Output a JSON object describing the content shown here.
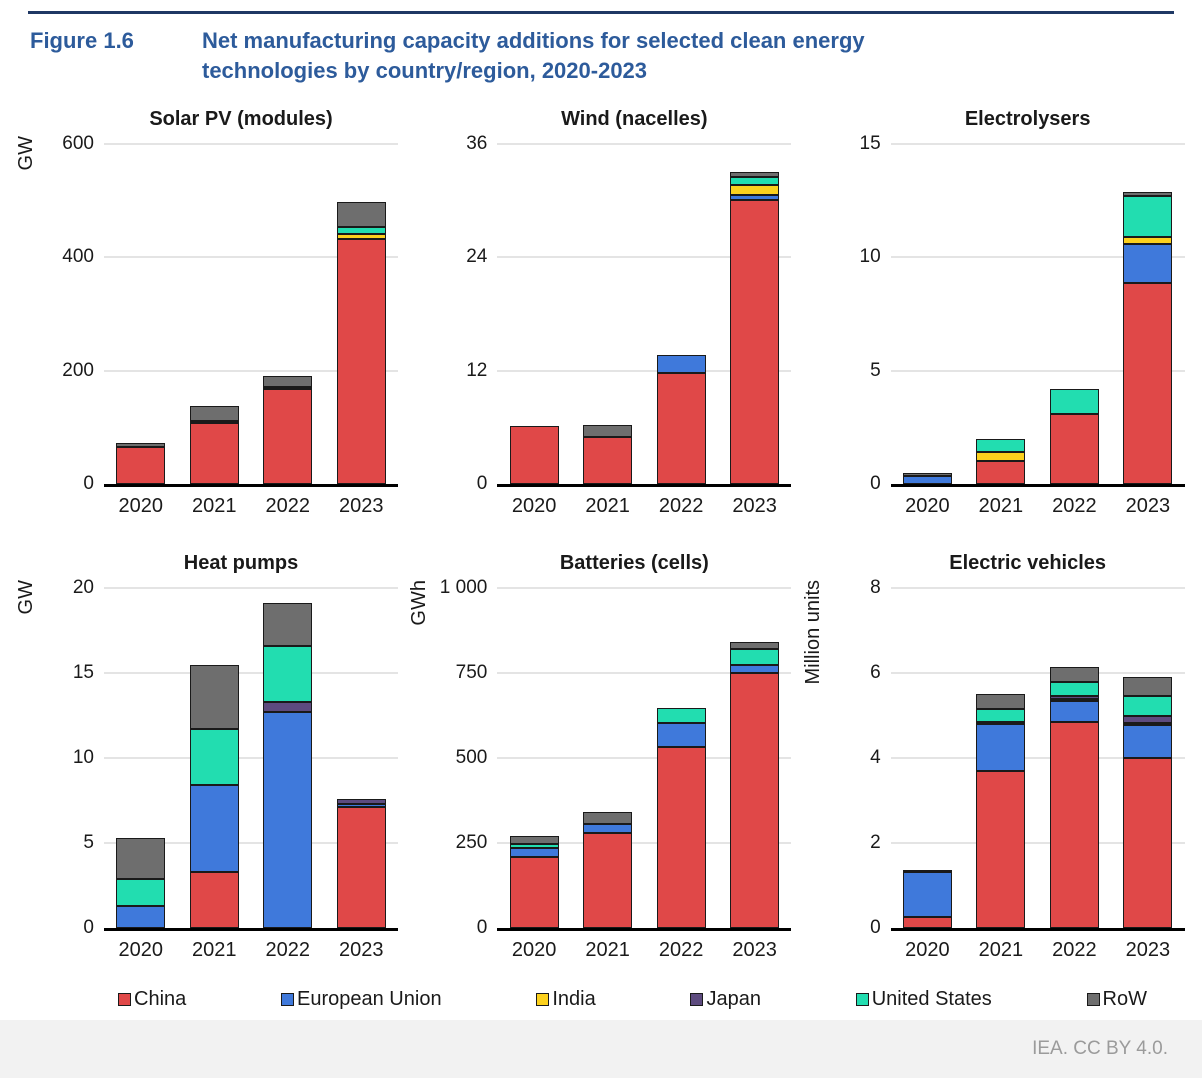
{
  "header": {
    "figure_label": "Figure 1.6",
    "title_line1": "Net manufacturing capacity additions for selected clean energy",
    "title_line2": "technologies by country/region, 2020-2023",
    "accent_color": "#2d5b9b",
    "rule_color": "#1f3864"
  },
  "footer": {
    "attribution": "IEA. CC BY 4.0."
  },
  "legend": [
    {
      "label": "China",
      "color": "#e04848"
    },
    {
      "label": "European Union",
      "color": "#3f79db"
    },
    {
      "label": "India",
      "color": "#fcd11d"
    },
    {
      "label": "Japan",
      "color": "#5d4b7f"
    },
    {
      "label": "United States",
      "color": "#22ddb0"
    },
    {
      "label": "RoW",
      "color": "#6e6e6e"
    }
  ],
  "series_colors": {
    "China": "#e04848",
    "European Union": "#3f79db",
    "India": "#fcd11d",
    "Japan": "#5d4b7f",
    "United States": "#22ddb0",
    "RoW": "#6e6e6e"
  },
  "chart_config": {
    "stacked": true,
    "legend_position": "bottom",
    "grid": "horizontal",
    "gridline_color": "#e4e4e4",
    "bar_border_color": "#1a1a1a"
  },
  "chart_data": [
    {
      "type": "bar",
      "stacked": true,
      "title": "Solar PV (modules)",
      "ylabel": "GW",
      "ylim": [
        0,
        600
      ],
      "yticks": [
        0,
        200,
        400,
        600
      ],
      "yticklabels": [
        "0",
        "200",
        "400",
        "600"
      ],
      "categories": [
        "2020",
        "2021",
        "2022",
        "2023"
      ],
      "series": [
        {
          "name": "China",
          "values": [
            65,
            107,
            167,
            432
          ]
        },
        {
          "name": "European Union",
          "values": [
            0,
            0,
            0,
            0
          ]
        },
        {
          "name": "India",
          "values": [
            0,
            4,
            4,
            10
          ]
        },
        {
          "name": "Japan",
          "values": [
            0,
            0,
            0,
            0
          ]
        },
        {
          "name": "United States",
          "values": [
            0,
            0,
            0,
            12
          ]
        },
        {
          "name": "RoW",
          "values": [
            8,
            27,
            20,
            44
          ]
        }
      ]
    },
    {
      "type": "bar",
      "stacked": true,
      "title": "Wind (nacelles)",
      "ylabel": "",
      "ylim": [
        0,
        36
      ],
      "yticks": [
        0,
        12,
        24,
        36
      ],
      "yticklabels": [
        "0",
        "12",
        "24",
        "36"
      ],
      "categories": [
        "2020",
        "2021",
        "2022",
        "2023"
      ],
      "series": [
        {
          "name": "China",
          "values": [
            6.1,
            5.0,
            11.8,
            30.1
          ]
        },
        {
          "name": "European Union",
          "values": [
            0,
            0,
            1.9,
            0.55
          ]
        },
        {
          "name": "India",
          "values": [
            0,
            0,
            0,
            1.0
          ]
        },
        {
          "name": "Japan",
          "values": [
            0,
            0,
            0,
            0
          ]
        },
        {
          "name": "United States",
          "values": [
            0,
            0,
            0,
            0.9
          ]
        },
        {
          "name": "RoW",
          "values": [
            0,
            1.3,
            0,
            0.5
          ]
        }
      ]
    },
    {
      "type": "bar",
      "stacked": true,
      "title": "Electrolysers",
      "ylabel": "",
      "ylim": [
        0,
        15
      ],
      "yticks": [
        0,
        5,
        10,
        15
      ],
      "yticklabels": [
        "0",
        "5",
        "10",
        "15"
      ],
      "categories": [
        "2020",
        "2021",
        "2022",
        "2023"
      ],
      "series": [
        {
          "name": "China",
          "values": [
            0,
            1.0,
            3.1,
            8.85
          ]
        },
        {
          "name": "European Union",
          "values": [
            0.35,
            0,
            0,
            1.75
          ]
        },
        {
          "name": "India",
          "values": [
            0,
            0.4,
            0,
            0.3
          ]
        },
        {
          "name": "Japan",
          "values": [
            0,
            0,
            0,
            0
          ]
        },
        {
          "name": "United States",
          "values": [
            0,
            0.6,
            1.1,
            1.8
          ]
        },
        {
          "name": "RoW",
          "values": [
            0.15,
            0,
            0,
            0.2
          ]
        }
      ]
    },
    {
      "type": "bar",
      "stacked": true,
      "title": "Heat pumps",
      "ylabel": "GW",
      "ylim": [
        0,
        20
      ],
      "yticks": [
        0,
        5,
        10,
        15,
        20
      ],
      "yticklabels": [
        "0",
        "5",
        "10",
        "15",
        "20"
      ],
      "categories": [
        "2020",
        "2021",
        "2022",
        "2023"
      ],
      "series": [
        {
          "name": "China",
          "values": [
            0,
            3.3,
            0,
            7.1
          ]
        },
        {
          "name": "European Union",
          "values": [
            1.3,
            5.1,
            12.7,
            0.2
          ]
        },
        {
          "name": "India",
          "values": [
            0,
            0,
            0,
            0
          ]
        },
        {
          "name": "Japan",
          "values": [
            0,
            0,
            0.6,
            0.3
          ]
        },
        {
          "name": "United States",
          "values": [
            1.6,
            3.3,
            3.3,
            0
          ]
        },
        {
          "name": "RoW",
          "values": [
            2.4,
            3.8,
            2.5,
            0
          ]
        }
      ]
    },
    {
      "type": "bar",
      "stacked": true,
      "title": "Batteries (cells)",
      "ylabel": "GWh",
      "ylim": [
        0,
        1000
      ],
      "yticks": [
        0,
        250,
        500,
        750,
        1000
      ],
      "yticklabels": [
        "0",
        "250",
        "500",
        "750",
        "1 000"
      ],
      "categories": [
        "2020",
        "2021",
        "2022",
        "2023"
      ],
      "series": [
        {
          "name": "China",
          "values": [
            210,
            280,
            533,
            750
          ]
        },
        {
          "name": "European Union",
          "values": [
            25,
            25,
            70,
            25
          ]
        },
        {
          "name": "India",
          "values": [
            0,
            0,
            0,
            0
          ]
        },
        {
          "name": "Japan",
          "values": [
            0,
            0,
            0,
            0
          ]
        },
        {
          "name": "United States",
          "values": [
            13,
            0,
            45,
            47
          ]
        },
        {
          "name": "RoW",
          "values": [
            22,
            36,
            0,
            20
          ]
        }
      ]
    },
    {
      "type": "bar",
      "stacked": true,
      "title": "Electric vehicles",
      "ylabel": "Million units",
      "ylim": [
        0,
        8
      ],
      "yticks": [
        0,
        2,
        4,
        6,
        8
      ],
      "yticklabels": [
        "0",
        "2",
        "4",
        "6",
        "8"
      ],
      "categories": [
        "2020",
        "2021",
        "2022",
        "2023"
      ],
      "series": [
        {
          "name": "China",
          "values": [
            0.27,
            3.7,
            4.85,
            4.0
          ]
        },
        {
          "name": "European Union",
          "values": [
            1.05,
            1.1,
            0.5,
            0.77
          ]
        },
        {
          "name": "India",
          "values": [
            0,
            0,
            0.03,
            0.04
          ]
        },
        {
          "name": "Japan",
          "values": [
            0.05,
            0.05,
            0.06,
            0.17
          ]
        },
        {
          "name": "United States",
          "values": [
            0,
            0.3,
            0.33,
            0.47
          ]
        },
        {
          "name": "RoW",
          "values": [
            0,
            0.35,
            0.35,
            0.45
          ]
        }
      ]
    }
  ]
}
